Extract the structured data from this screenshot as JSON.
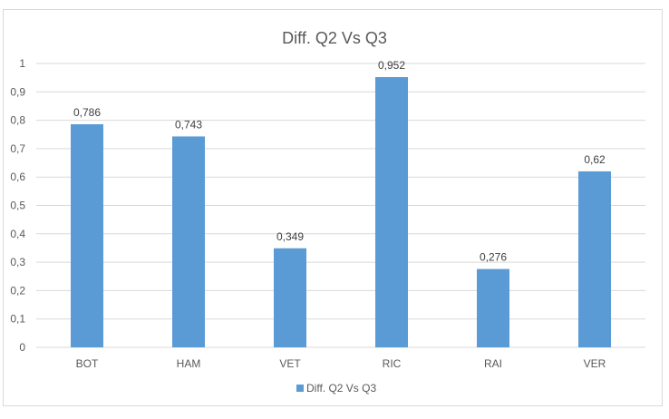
{
  "chart_data": {
    "type": "bar",
    "title": "Diff. Q2 Vs Q3",
    "xlabel": "",
    "ylabel": "",
    "categories": [
      "BOT",
      "HAM",
      "VET",
      "RIC",
      "RAI",
      "VER"
    ],
    "series": [
      {
        "name": "Diff. Q2 Vs Q3",
        "values": [
          0.786,
          0.743,
          0.349,
          0.952,
          0.276,
          0.62
        ],
        "value_labels": [
          "0,786",
          "0,743",
          "0,349",
          "0,952",
          "0,276",
          "0,62"
        ],
        "color": "#5b9bd5"
      }
    ],
    "ylim": [
      0,
      1
    ],
    "yticks": [
      0,
      0.1,
      0.2,
      0.3,
      0.4,
      0.5,
      0.6,
      0.7,
      0.8,
      0.9,
      1
    ],
    "ytick_labels": [
      "0",
      "0,1",
      "0,2",
      "0,3",
      "0,4",
      "0,5",
      "0,6",
      "0,7",
      "0,8",
      "0,9",
      "1"
    ],
    "grid": true,
    "gridline_color": "#d9d9d9",
    "legend_position": "bottom"
  }
}
